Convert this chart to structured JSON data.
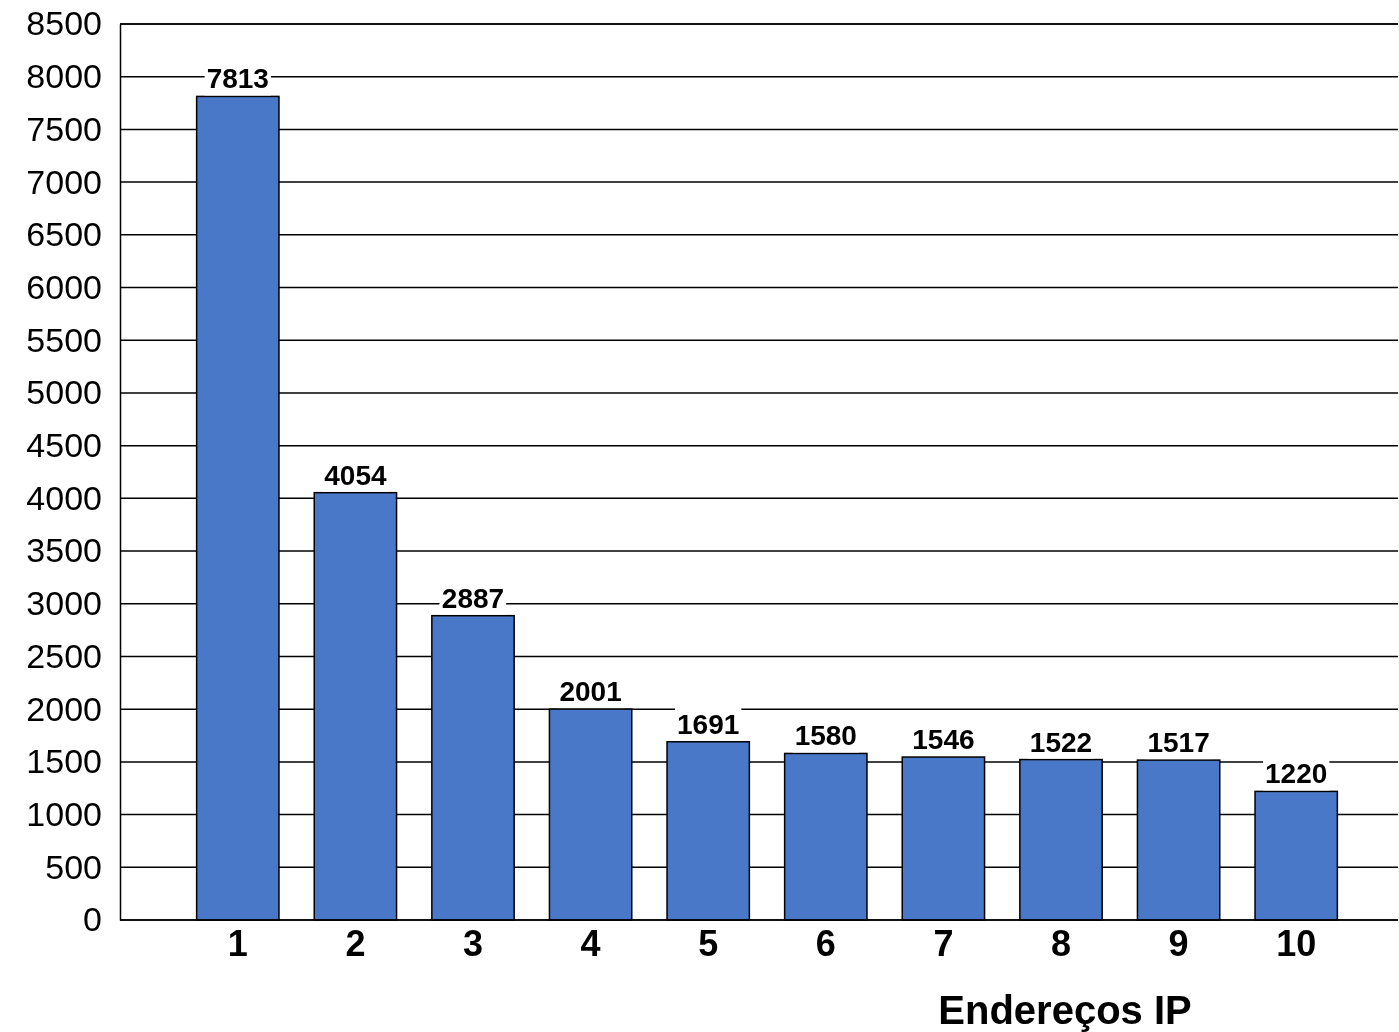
{
  "chart_data": {
    "type": "bar",
    "xlabel": "Endereços IP",
    "categories": [
      "1",
      "2",
      "3",
      "4",
      "5",
      "6",
      "7",
      "8",
      "9",
      "10"
    ],
    "values": [
      7813,
      4054,
      2887,
      2001,
      1691,
      1580,
      1546,
      1522,
      1517,
      1220
    ],
    "color": "#4a78c8",
    "ylim": [
      0,
      8500
    ],
    "yticks": [
      0,
      500,
      1000,
      1500,
      2000,
      2500,
      3000,
      3500,
      4000,
      4500,
      5000,
      5500,
      6000,
      6500,
      7000,
      7500,
      8000,
      8500
    ],
    "grid": "y",
    "data_labels": true
  }
}
